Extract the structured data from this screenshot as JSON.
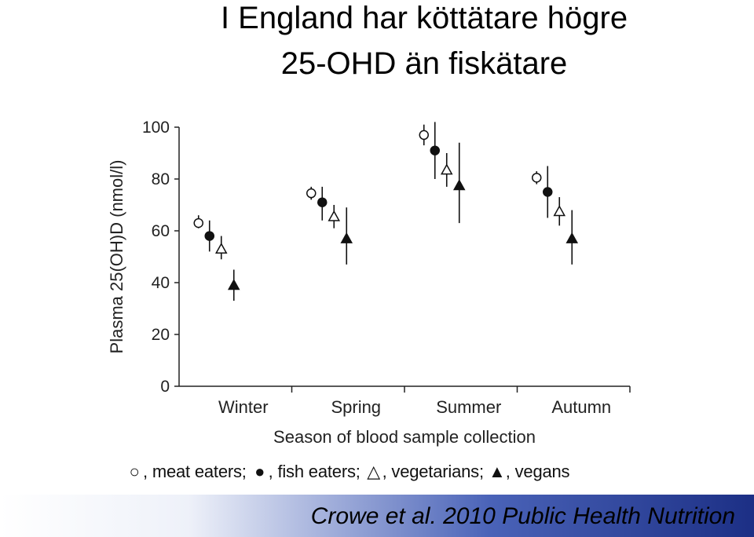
{
  "slide": {
    "title_line1": "I England har köttätare högre",
    "title_line2": "25-OHD än fiskätare",
    "citation": "Crowe et al. 2010 Public Health Nutrition"
  },
  "legend": {
    "meat_symbol": "○",
    "meat_label": ", meat eaters;",
    "fish_symbol": "●",
    "fish_label": ", fish eaters;",
    "veg_symbol": "△",
    "veg_label": ", vegetarians;",
    "vegan_symbol": "▲",
    "vegan_label": ", vegans"
  },
  "chart_data": {
    "type": "scatter",
    "title": "",
    "xlabel": "Season of blood sample collection",
    "ylabel": "Plasma 25(OH)D (nmol/l)",
    "ylim": [
      0,
      100
    ],
    "yticks": [
      0,
      20,
      40,
      60,
      80,
      100
    ],
    "categories": [
      "Winter",
      "Spring",
      "Summer",
      "Autumn"
    ],
    "grid": false,
    "series": [
      {
        "name": "meat eaters",
        "marker": "circle-open",
        "values": [
          63,
          74.5,
          97,
          80.5
        ],
        "lower": [
          61,
          72,
          93,
          78
        ],
        "upper": [
          66,
          77,
          101,
          83
        ]
      },
      {
        "name": "fish eaters",
        "marker": "circle-filled",
        "values": [
          58,
          71,
          91,
          75
        ],
        "lower": [
          52,
          64,
          80,
          65
        ],
        "upper": [
          64,
          77,
          102,
          85
        ]
      },
      {
        "name": "vegetarians",
        "marker": "triangle-open",
        "values": [
          53,
          65.5,
          83.5,
          67.5
        ],
        "lower": [
          49,
          61,
          77,
          62
        ],
        "upper": [
          58,
          70,
          90,
          73
        ]
      },
      {
        "name": "vegans",
        "marker": "triangle-filled",
        "values": [
          39,
          57,
          77.5,
          57
        ],
        "lower": [
          33,
          47,
          63,
          47
        ],
        "upper": [
          45,
          69,
          94,
          68
        ]
      }
    ]
  }
}
